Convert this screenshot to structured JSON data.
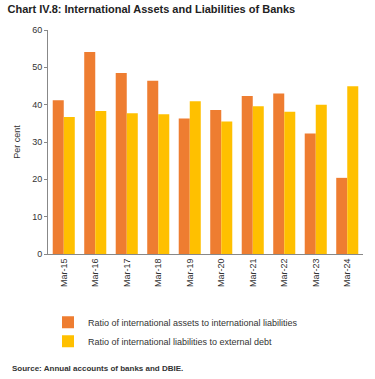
{
  "chart_data": {
    "type": "bar",
    "title": "Chart IV.8: International Assets and Liabilities of Banks",
    "y_label": "Per cent",
    "source": "Source: Annual accounts of banks and DBIE.",
    "categories": [
      "Mar-15",
      "Mar-16",
      "Mar-17",
      "Mar-18",
      "Mar-19",
      "Mar-20",
      "Mar-21",
      "Mar-22",
      "Mar-23",
      "Mar-24"
    ],
    "series": [
      {
        "name": "Ratio of international assets to international liabilities",
        "color": "#ee7d31",
        "values": [
          41.2,
          54.1,
          48.5,
          46.4,
          36.3,
          38.6,
          42.3,
          43.0,
          32.3,
          20.4
        ]
      },
      {
        "name": "Ratio of international liabilities to external debt",
        "color": "#ffc000",
        "values": [
          36.7,
          38.3,
          37.7,
          37.4,
          40.9,
          35.5,
          39.6,
          38.1,
          40.0,
          44.9
        ]
      }
    ],
    "ylim": [
      0,
      60
    ],
    "yticks": [
      0,
      10,
      20,
      30,
      40,
      50,
      60
    ],
    "grid": false
  }
}
